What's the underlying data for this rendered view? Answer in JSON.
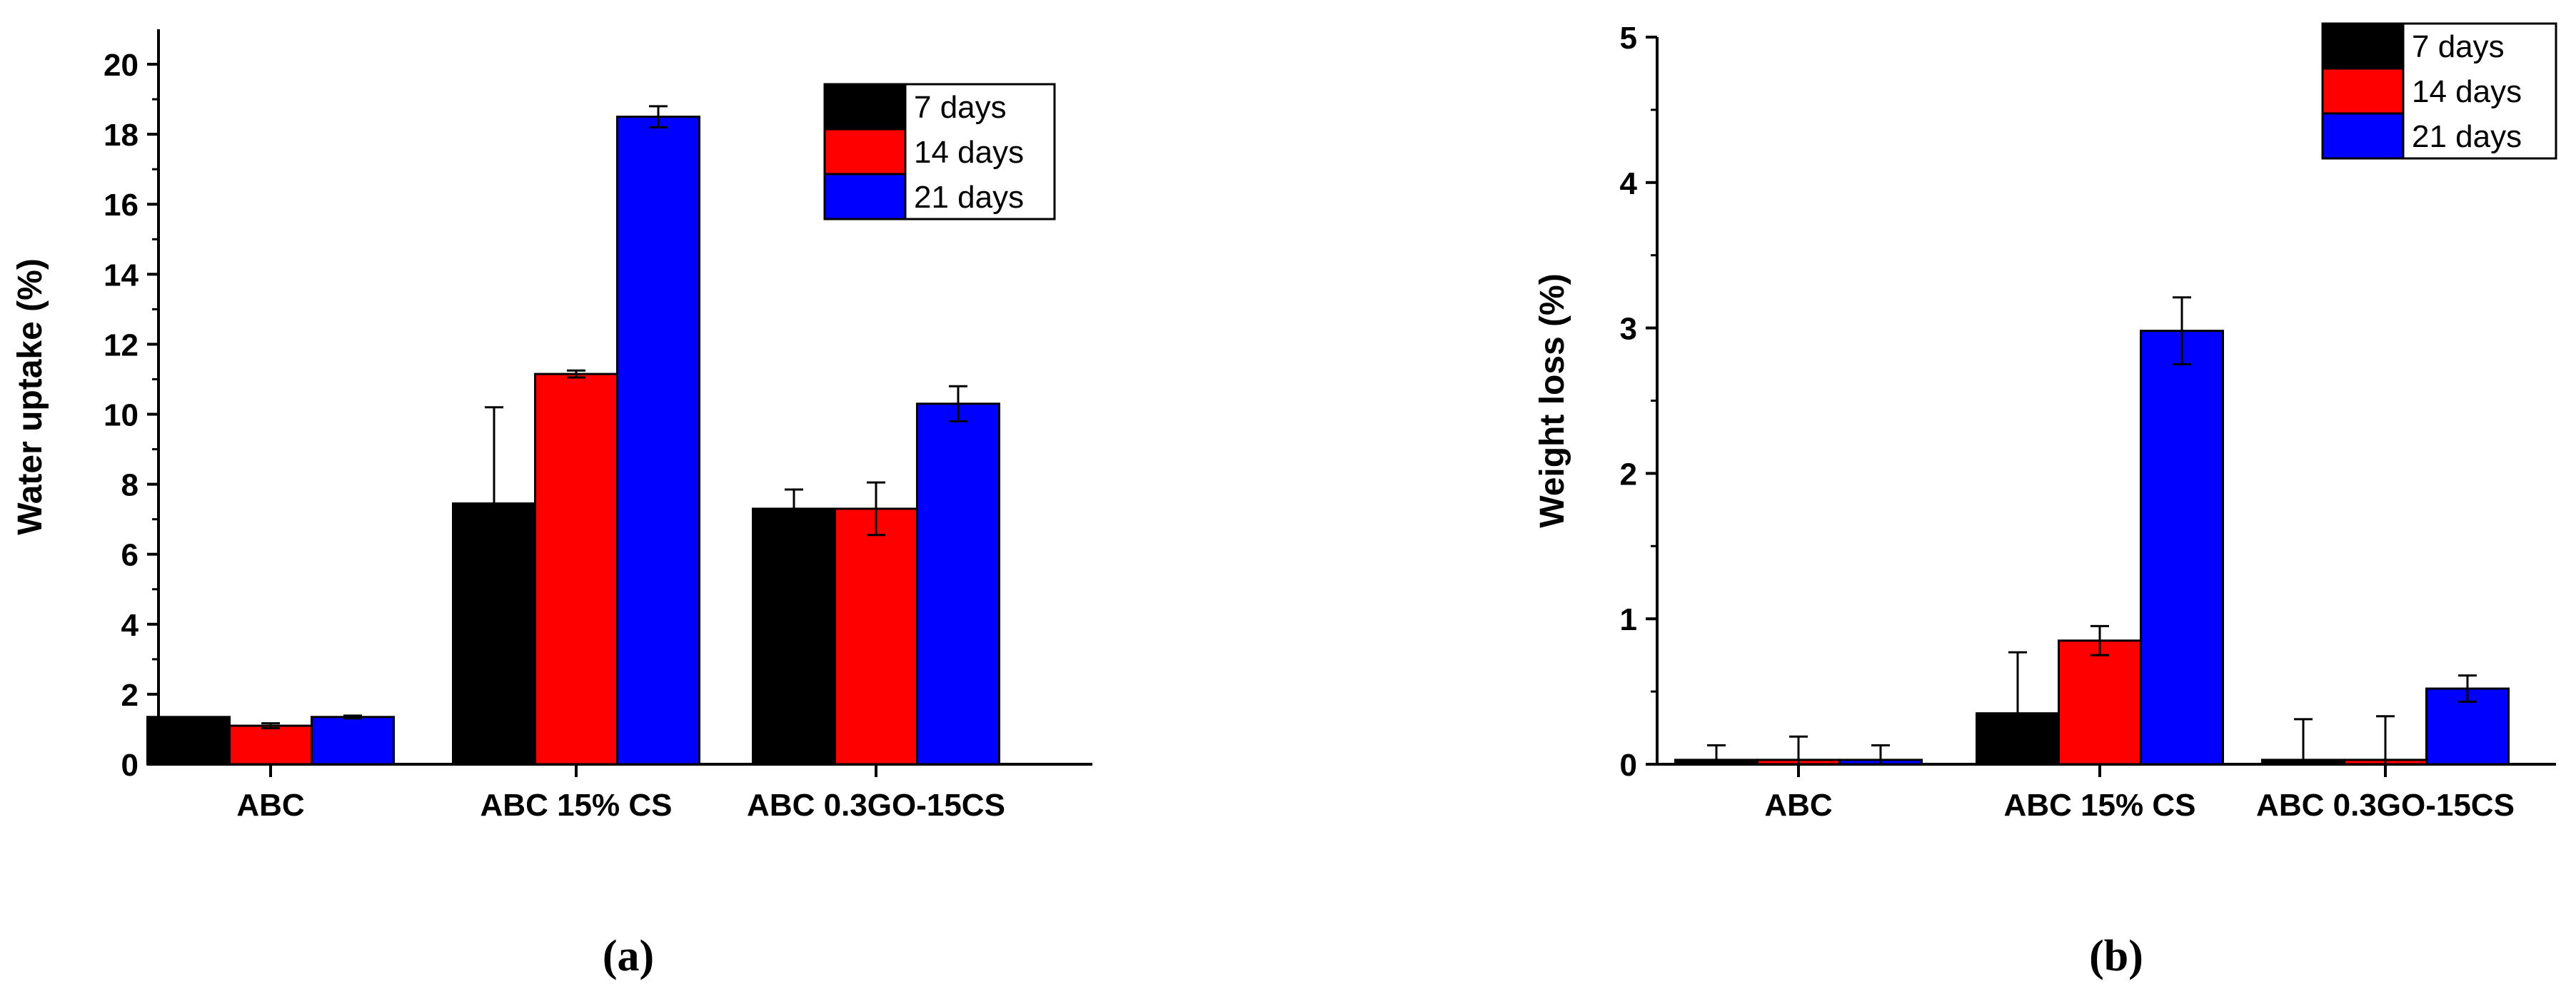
{
  "chart_data": [
    {
      "type": "bar",
      "panel_label": "(a)",
      "title": "",
      "xlabel": "",
      "ylabel": "Water uptake (%)",
      "ylim": [
        0,
        21
      ],
      "yticks": [
        0,
        2,
        4,
        6,
        8,
        10,
        12,
        14,
        16,
        18,
        20
      ],
      "categories": [
        "ABC",
        "ABC 15% CS",
        "ABC 0.3GO-15CS"
      ],
      "series": [
        {
          "name": "7 days",
          "color": "#000000",
          "values": [
            1.35,
            7.45,
            7.3
          ],
          "errors": [
            0.0,
            2.75,
            0.55
          ]
        },
        {
          "name": "14 days",
          "color": "#ff0000",
          "values": [
            1.1,
            11.15,
            7.3
          ],
          "errors": [
            0.07,
            0.1,
            0.75
          ]
        },
        {
          "name": "21 days",
          "color": "#0000ff",
          "values": [
            1.35,
            18.5,
            10.3
          ],
          "errors": [
            0.04,
            0.3,
            0.5
          ]
        }
      ],
      "legend_position": "top-right",
      "grid": false
    },
    {
      "type": "bar",
      "panel_label": "(b)",
      "title": "",
      "xlabel": "",
      "ylabel": "Weight loss (%)",
      "ylim": [
        0,
        5
      ],
      "yticks": [
        0,
        1,
        2,
        3,
        4,
        5
      ],
      "categories": [
        "ABC",
        "ABC 15% CS",
        "ABC 0.3GO-15CS"
      ],
      "series": [
        {
          "name": "7 days",
          "color": "#000000",
          "values": [
            0.03,
            0.35,
            0.03
          ],
          "errors": [
            0.1,
            0.42,
            0.28
          ]
        },
        {
          "name": "14 days",
          "color": "#ff0000",
          "values": [
            0.03,
            0.85,
            0.03
          ],
          "errors": [
            0.16,
            0.1,
            0.3
          ]
        },
        {
          "name": "21 days",
          "color": "#0000ff",
          "values": [
            0.03,
            2.98,
            0.52
          ],
          "errors": [
            0.1,
            0.23,
            0.09
          ]
        }
      ],
      "legend_position": "top-right",
      "grid": false
    }
  ]
}
